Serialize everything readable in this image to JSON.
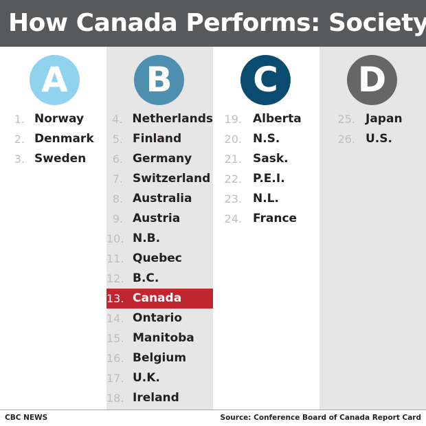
{
  "title": "How Canada Performs: Society",
  "colors": {
    "header_bg": "#58595b",
    "grade_a": "#8fd3ee",
    "grade_b": "#4d8faf",
    "grade_c": "#0a4c6f",
    "grade_d": "#666666",
    "highlight": "#c0262d",
    "column_shade": "#e6e6e6"
  },
  "grades": [
    {
      "letter": "A",
      "items": [
        {
          "rank": "1.",
          "name": "Norway"
        },
        {
          "rank": "2.",
          "name": "Denmark"
        },
        {
          "rank": "3.",
          "name": "Sweden"
        }
      ]
    },
    {
      "letter": "B",
      "items": [
        {
          "rank": "4.",
          "name": "Netherlands"
        },
        {
          "rank": "5.",
          "name": "Finland"
        },
        {
          "rank": "6.",
          "name": "Germany"
        },
        {
          "rank": "7.",
          "name": "Switzerland"
        },
        {
          "rank": "8.",
          "name": "Australia"
        },
        {
          "rank": "9.",
          "name": "Austria"
        },
        {
          "rank": "10.",
          "name": "N.B."
        },
        {
          "rank": "11.",
          "name": "Quebec"
        },
        {
          "rank": "12.",
          "name": "B.C."
        },
        {
          "rank": "13.",
          "name": "Canada",
          "highlighted": true
        },
        {
          "rank": "14.",
          "name": "Ontario"
        },
        {
          "rank": "15.",
          "name": "Manitoba"
        },
        {
          "rank": "16.",
          "name": "Belgium"
        },
        {
          "rank": "17.",
          "name": "U.K."
        },
        {
          "rank": "18.",
          "name": "Ireland"
        }
      ]
    },
    {
      "letter": "C",
      "items": [
        {
          "rank": "19.",
          "name": "Alberta"
        },
        {
          "rank": "20.",
          "name": "N.S."
        },
        {
          "rank": "21.",
          "name": "Sask."
        },
        {
          "rank": "22.",
          "name": "P.E.I."
        },
        {
          "rank": "23.",
          "name": "N.L."
        },
        {
          "rank": "24.",
          "name": "France"
        }
      ]
    },
    {
      "letter": "D",
      "items": [
        {
          "rank": "25.",
          "name": "Japan"
        },
        {
          "rank": "26.",
          "name": "U.S."
        }
      ]
    }
  ],
  "footer": {
    "credit": "CBC NEWS",
    "source": "Source: Conference Board of Canada Report Card"
  }
}
